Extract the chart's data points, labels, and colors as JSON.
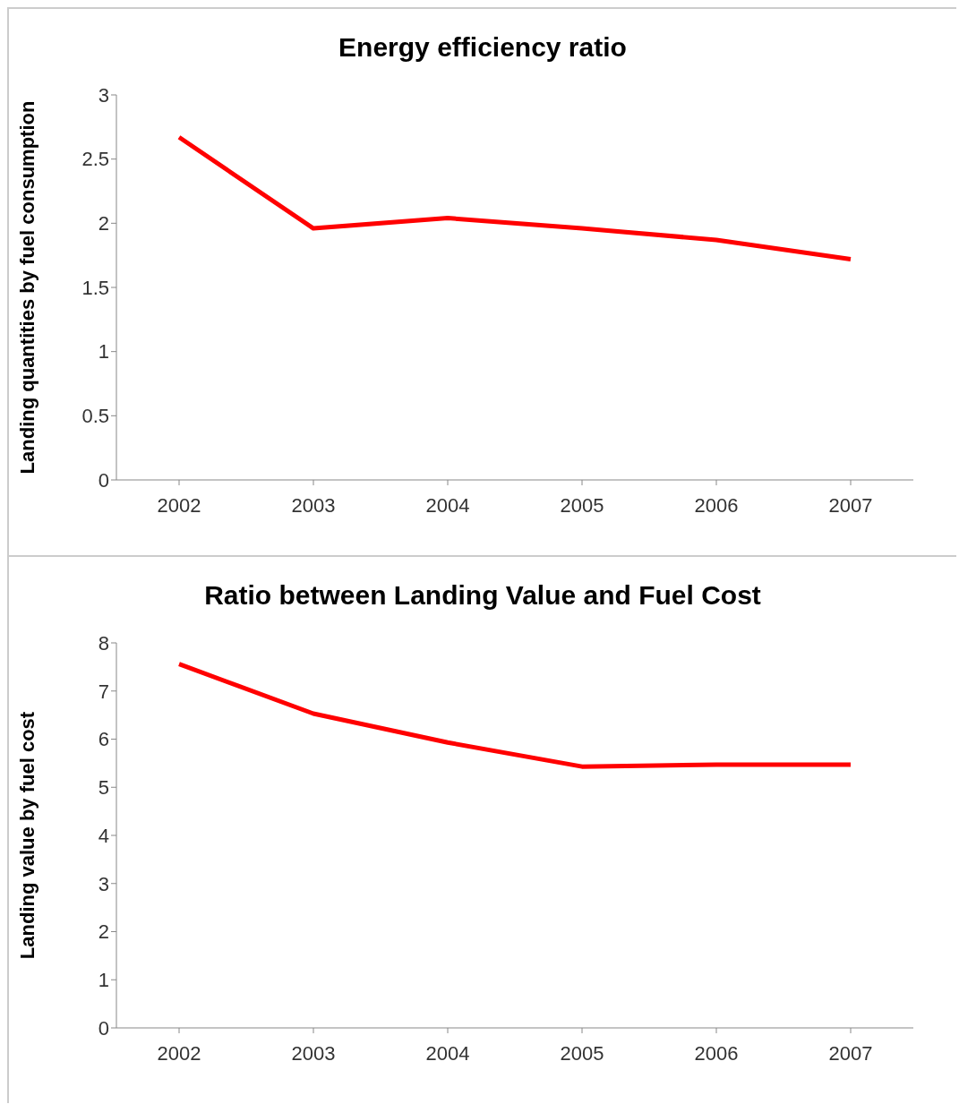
{
  "chart_data": [
    {
      "type": "line",
      "title": "Energy efficiency ratio",
      "ylabel": "Landing quantities  by fuel consumption",
      "categories": [
        "2002",
        "2003",
        "2004",
        "2005",
        "2006",
        "2007"
      ],
      "series": [
        {
          "color": "#ff0000",
          "values": [
            2.67,
            1.96,
            2.04,
            1.96,
            1.87,
            1.72
          ]
        }
      ],
      "ylim": [
        0,
        3
      ],
      "yticks": [
        0,
        {
          "value": 0.5,
          "label": "0.5"
        },
        1,
        {
          "value": 1.5,
          "label": "1.5"
        },
        2,
        {
          "value": 2.5,
          "label": "2.5"
        },
        3
      ],
      "grid": false,
      "legend": false
    },
    {
      "type": "line",
      "title": "Ratio between Landing Value and Fuel Cost",
      "ylabel": "Landing value  by fuel cost",
      "categories": [
        "2002",
        "2003",
        "2004",
        "2005",
        "2006",
        "2007"
      ],
      "series": [
        {
          "color": "#ff0000",
          "values": [
            7.56,
            6.53,
            5.93,
            5.43,
            5.47,
            5.47
          ]
        }
      ],
      "ylim": [
        0,
        8
      ],
      "yticks": [
        0,
        1,
        2,
        3,
        4,
        5,
        6,
        7,
        8
      ],
      "grid": false,
      "legend": false
    }
  ]
}
